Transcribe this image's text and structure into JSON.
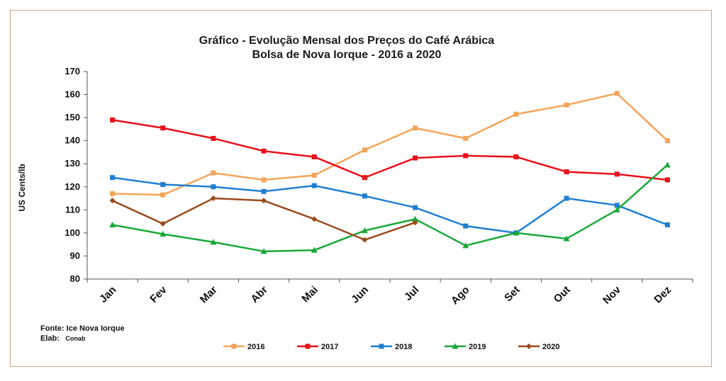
{
  "chart_data": {
    "type": "line",
    "title": "Gráfico  - Evolução Mensal dos Preços do Café Arábica",
    "subtitle": "Bolsa de Nova Iorque - 2016 a 2020",
    "ylabel": "US Cents/lb",
    "xlabel": "",
    "ylim": [
      80,
      170
    ],
    "yticks": [
      80,
      90,
      100,
      110,
      120,
      130,
      140,
      150,
      160,
      170
    ],
    "grid": false,
    "legend_position": "bottom",
    "categories": [
      "Jan",
      "Fev",
      "Mar",
      "Abr",
      "Mai",
      "Jun",
      "Jul",
      "Ago",
      "Set",
      "Out",
      "Nov",
      "Dez"
    ],
    "series": [
      {
        "name": "2016",
        "color": "#f4a55a",
        "marker": "square",
        "values": [
          117,
          116.5,
          126,
          123,
          125,
          136,
          145.5,
          141,
          151.5,
          155.5,
          160.5,
          140
        ]
      },
      {
        "name": "2017",
        "color": "#e8101a",
        "marker": "square",
        "values": [
          149,
          145.5,
          141,
          135.5,
          133,
          124,
          132.5,
          133.5,
          133,
          126.5,
          125.5,
          123
        ]
      },
      {
        "name": "2018",
        "color": "#1f7fd1",
        "marker": "square",
        "values": [
          124,
          121,
          120,
          118,
          120.5,
          116,
          111,
          103,
          100,
          115,
          112,
          103.5
        ]
      },
      {
        "name": "2019",
        "color": "#1aa83a",
        "marker": "triangle",
        "values": [
          103.5,
          99.5,
          96,
          92,
          92.5,
          101,
          106,
          94.5,
          100,
          97.5,
          110,
          129.5
        ]
      },
      {
        "name": "2020",
        "color": "#9a4a1c",
        "marker": "diamond",
        "values": [
          114,
          104,
          115,
          114,
          106,
          97,
          104.5,
          null,
          null,
          null,
          null,
          null
        ]
      }
    ]
  },
  "footer": {
    "source": "Fonte: Ice Nova Iorque",
    "elab_label": "Elab:",
    "elab_value": "Conab"
  }
}
